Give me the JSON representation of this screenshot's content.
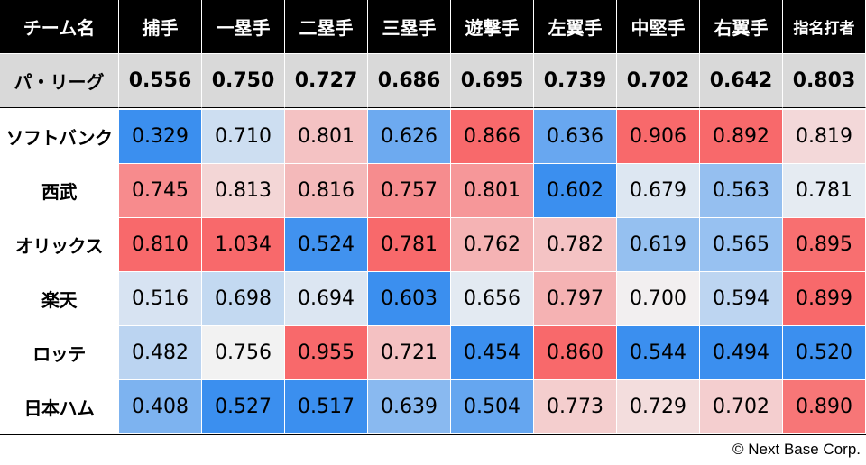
{
  "chart_data": {
    "type": "heatmap",
    "corner_label": "チーム名",
    "columns": [
      "捕手",
      "一塁手",
      "二塁手",
      "三塁手",
      "遊撃手",
      "左翼手",
      "中堅手",
      "右翼手",
      "指名打者"
    ],
    "league": {
      "label": "パ・リーグ",
      "values": [
        "0.556",
        "0.750",
        "0.727",
        "0.686",
        "0.695",
        "0.739",
        "0.702",
        "0.642",
        "0.803"
      ]
    },
    "teams": [
      {
        "name": "ソフトバンク",
        "values": [
          "0.329",
          "0.710",
          "0.801",
          "0.626",
          "0.866",
          "0.636",
          "0.906",
          "0.892",
          "0.819"
        ]
      },
      {
        "name": "西武",
        "values": [
          "0.745",
          "0.813",
          "0.816",
          "0.757",
          "0.801",
          "0.602",
          "0.679",
          "0.563",
          "0.781"
        ]
      },
      {
        "name": "オリックス",
        "values": [
          "0.810",
          "1.034",
          "0.524",
          "0.781",
          "0.762",
          "0.782",
          "0.619",
          "0.565",
          "0.895"
        ]
      },
      {
        "name": "楽天",
        "values": [
          "0.516",
          "0.698",
          "0.694",
          "0.603",
          "0.656",
          "0.797",
          "0.700",
          "0.594",
          "0.899"
        ]
      },
      {
        "name": "ロッテ",
        "values": [
          "0.482",
          "0.756",
          "0.955",
          "0.721",
          "0.454",
          "0.860",
          "0.544",
          "0.494",
          "0.520"
        ]
      },
      {
        "name": "日本ハム",
        "values": [
          "0.408",
          "0.527",
          "0.517",
          "0.639",
          "0.504",
          "0.773",
          "0.729",
          "0.702",
          "0.890"
        ]
      }
    ],
    "colors": {
      "high": "#f8696b",
      "low": "#3b8fef",
      "mid": "#f2f2f2",
      "header_bg": "#000000",
      "league_bg": "#d9d9d9"
    }
  },
  "credit": "© Next Base Corp."
}
